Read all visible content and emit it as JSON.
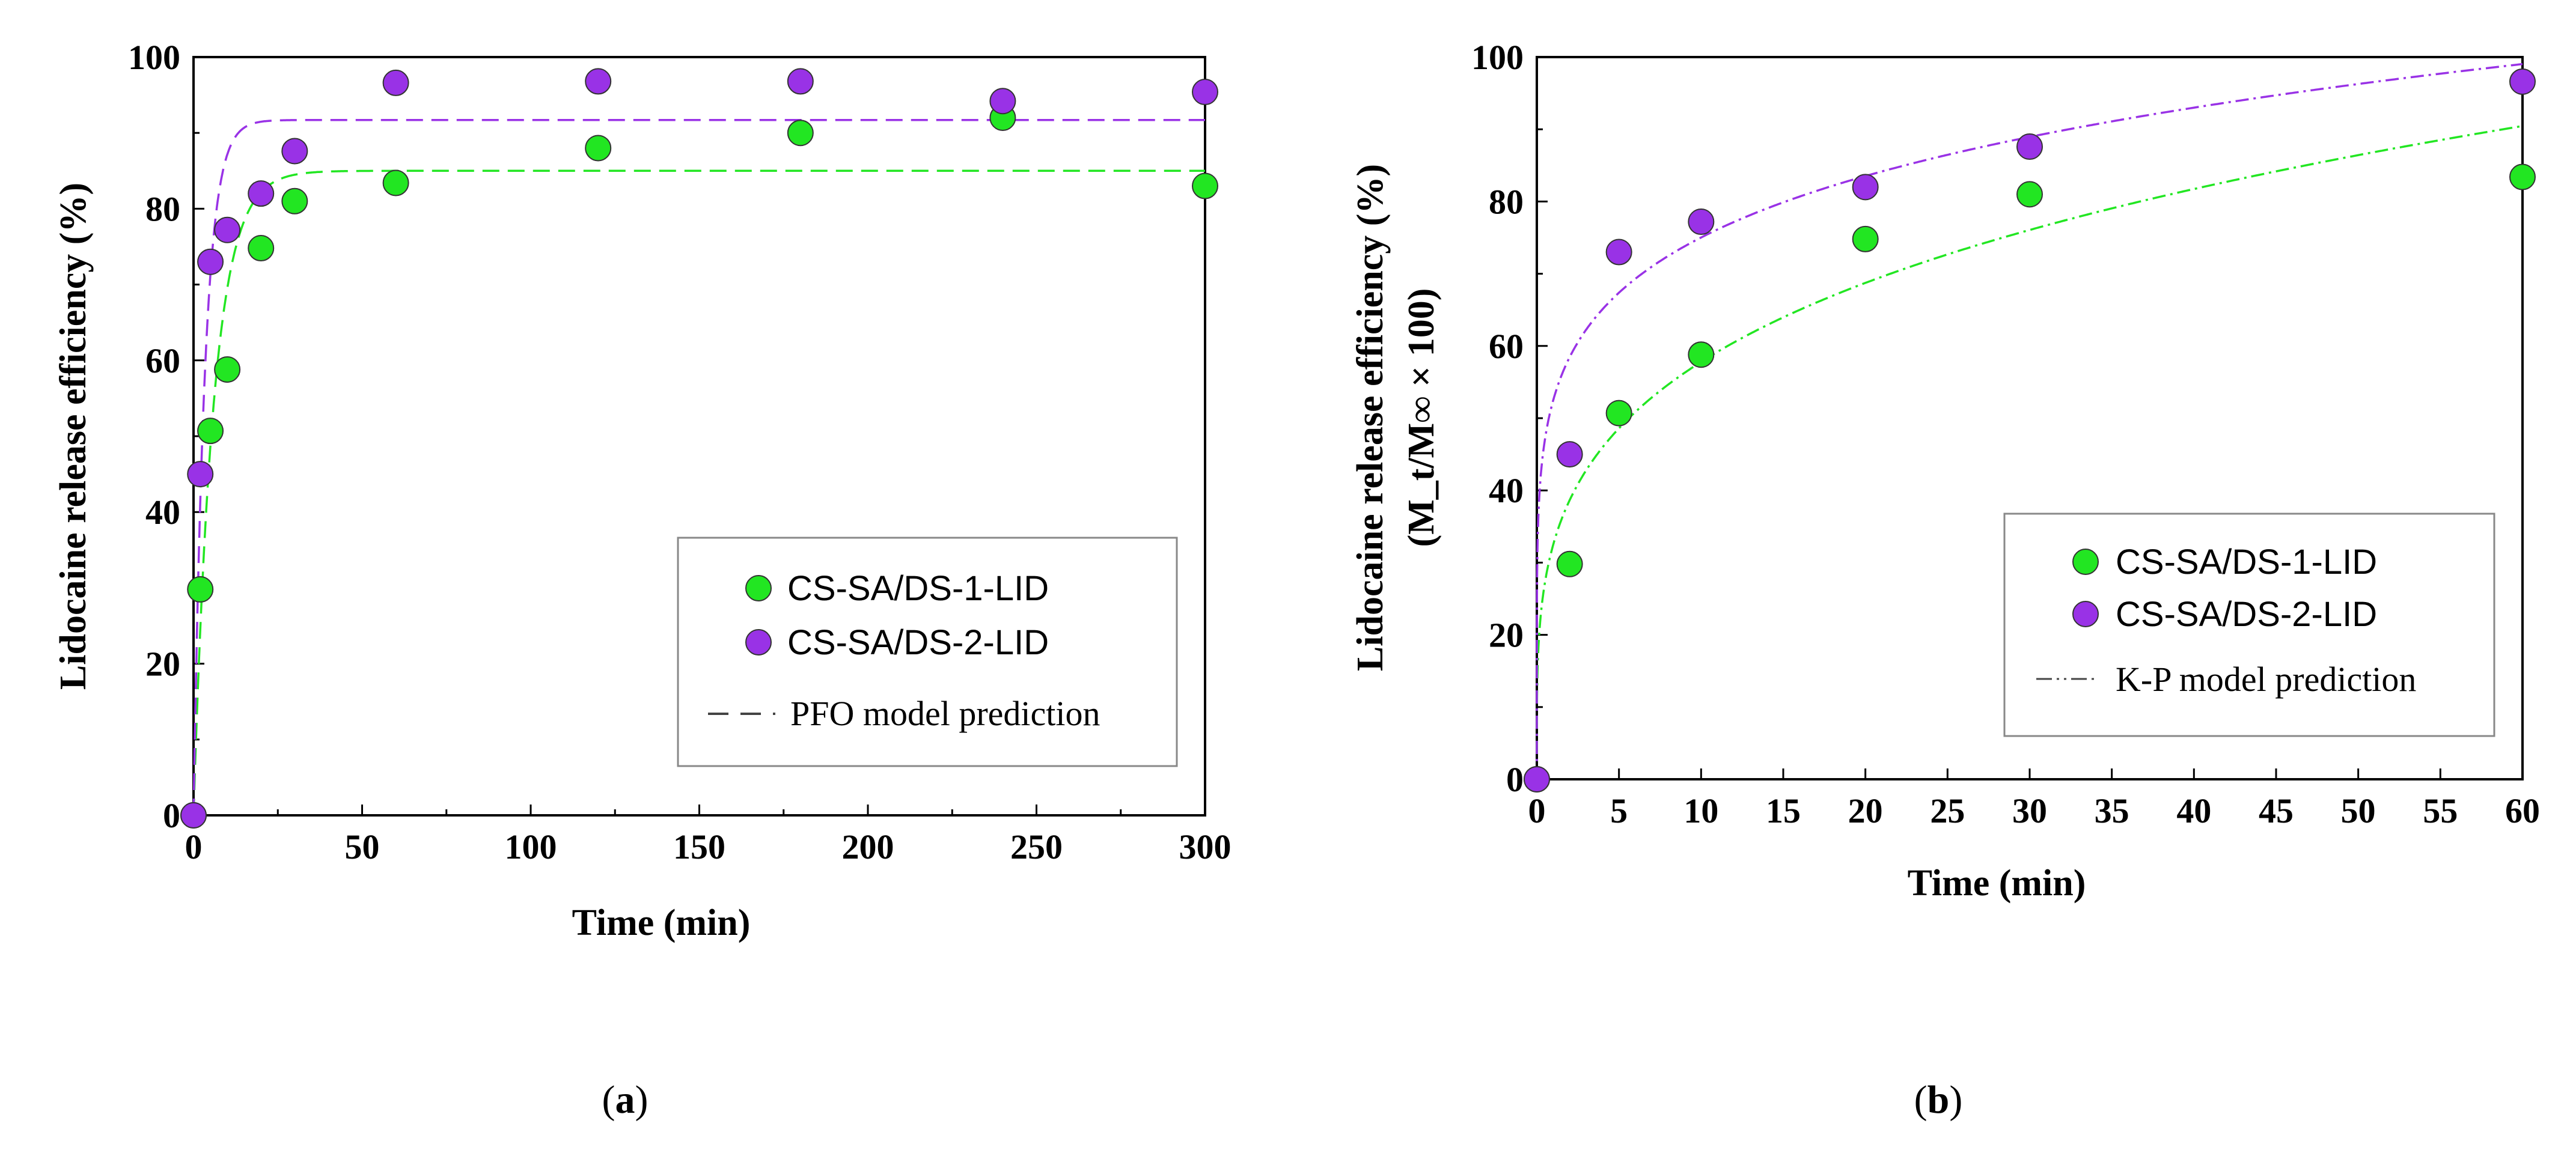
{
  "chart_data": [
    {
      "type": "scatter",
      "panel_label": "a",
      "xlabel": "Time (min)",
      "ylabel": "Lidocaine release efficiency (%)",
      "ylabel2": "",
      "xlim": [
        0,
        300
      ],
      "ylim": [
        0,
        100
      ],
      "xticks": [
        0,
        50,
        100,
        150,
        200,
        250,
        300
      ],
      "yticks": [
        0,
        20,
        40,
        60,
        80,
        100
      ],
      "legend_position": "bottom-right",
      "model": {
        "name": "PFO",
        "legend_label": "PFO model prediction",
        "style": "dashed"
      },
      "series": [
        {
          "name": "CS-SA/DS-1-LID",
          "color": "#22e622",
          "x": [
            0,
            2,
            5,
            10,
            20,
            30,
            60,
            120,
            180,
            240,
            300
          ],
          "y": [
            0,
            29.8,
            50.7,
            58.8,
            74.8,
            81,
            83.4,
            88,
            90,
            92,
            83
          ],
          "fit": {
            "qe": 85,
            "k1": 0.17
          }
        },
        {
          "name": "CS-SA/DS-2-LID",
          "color": "#9932e6",
          "x": [
            0,
            2,
            5,
            10,
            20,
            30,
            60,
            120,
            180,
            240,
            300
          ],
          "y": [
            0,
            45,
            73,
            77.2,
            82,
            87.6,
            96.6,
            96.8,
            96.8,
            94.2,
            95.4
          ],
          "fit": {
            "qe": 91.7,
            "k1": 0.3
          }
        }
      ]
    },
    {
      "type": "scatter",
      "panel_label": "b",
      "xlabel": "Time (min)",
      "ylabel": "Lidocaine release efficiency (%)",
      "ylabel2": "(M_t/M∞ × 100)",
      "xlim": [
        0,
        60
      ],
      "ylim": [
        0,
        100
      ],
      "xticks": [
        0,
        5,
        10,
        15,
        20,
        25,
        30,
        35,
        40,
        45,
        50,
        55,
        60
      ],
      "yticks": [
        0,
        20,
        40,
        60,
        80,
        100
      ],
      "legend_position": "bottom-right",
      "model": {
        "name": "K-P",
        "legend_label": "K-P  model prediction",
        "style": "dash-dot"
      },
      "series": [
        {
          "name": "CS-SA/DS-1-LID",
          "color": "#22e622",
          "x": [
            0,
            2,
            5,
            10,
            20,
            30,
            60
          ],
          "y": [
            0,
            29.8,
            50.7,
            58.8,
            74.8,
            81,
            83.4
          ],
          "fit": {
            "k": 32.5,
            "n": 0.25
          }
        },
        {
          "name": "CS-SA/DS-2-LID",
          "color": "#9932e6",
          "x": [
            0,
            2,
            5,
            10,
            20,
            30,
            60
          ],
          "y": [
            0,
            45,
            73,
            77.2,
            82,
            87.6,
            96.6
          ],
          "fit": {
            "k": 52.5,
            "n": 0.155
          }
        }
      ]
    }
  ]
}
